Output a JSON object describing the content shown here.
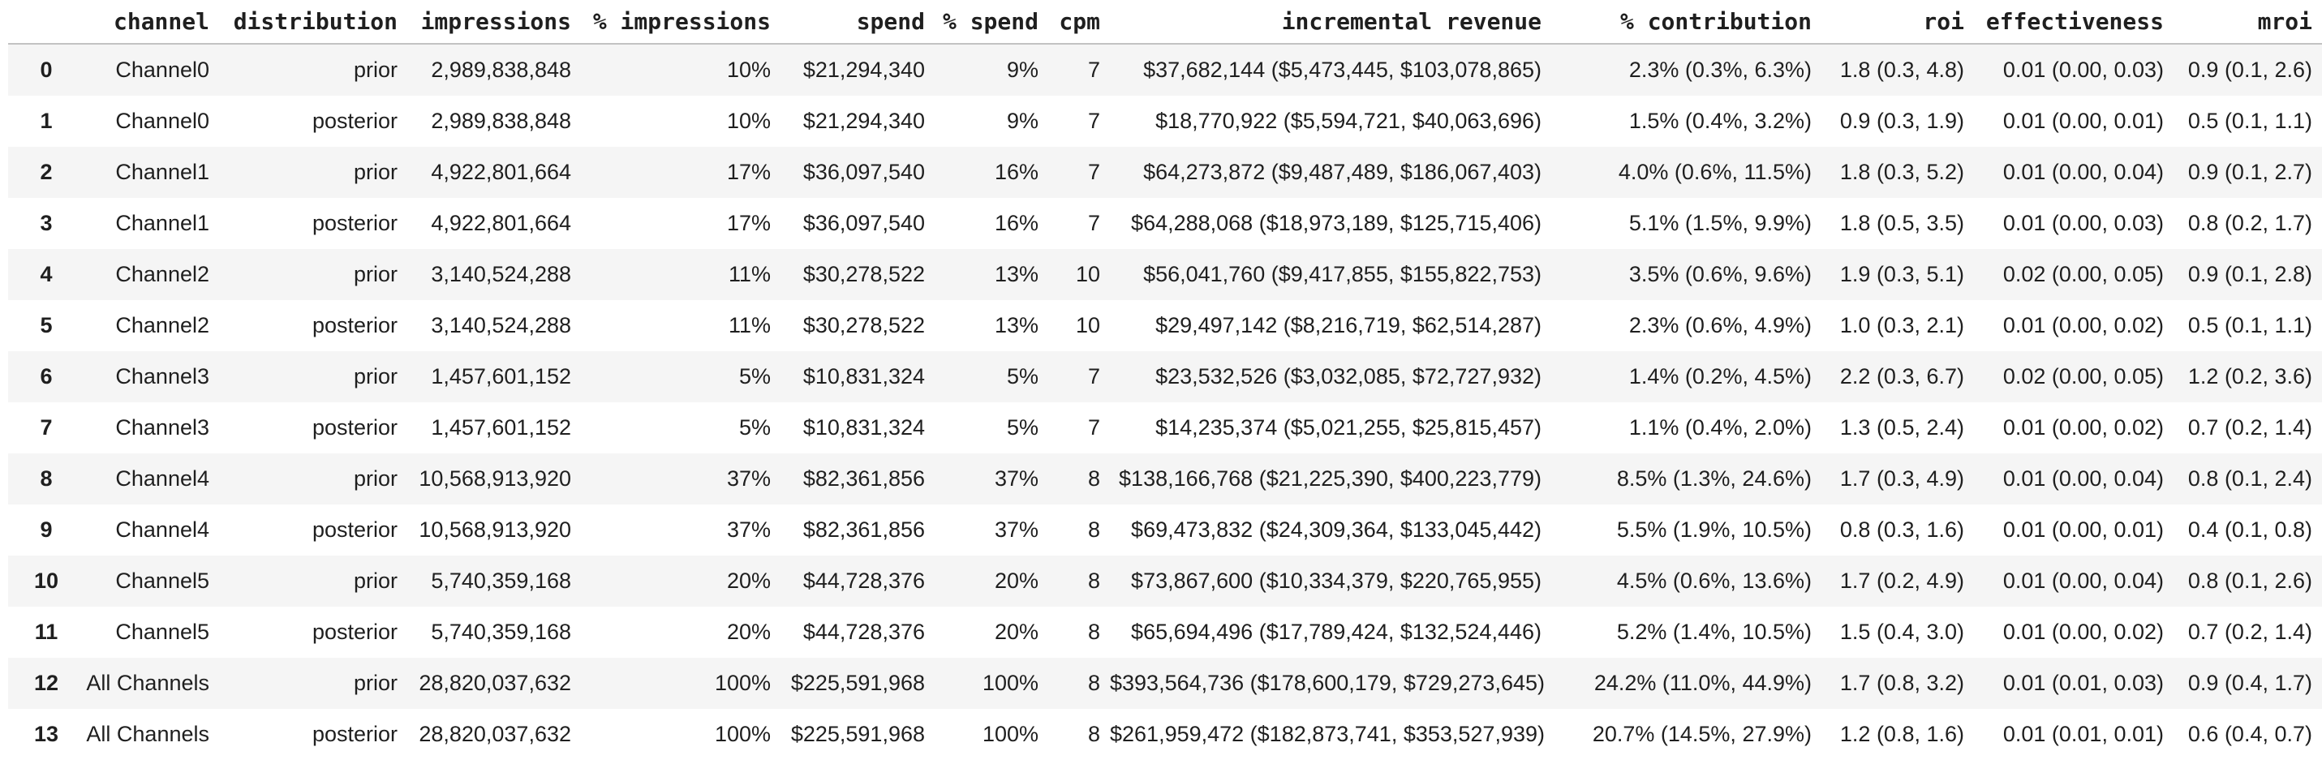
{
  "colors": {
    "background": "#ffffff",
    "row_stripe": "#f5f5f5",
    "text": "#1f1f1f",
    "header_border": "#c2c2c2"
  },
  "chart_data": {
    "type": "table",
    "description": "Media channel summary table with prior/posterior distributions per channel",
    "index_header": "",
    "columns": [
      "channel",
      "distribution",
      "impressions",
      "% impressions",
      "spend",
      "% spend",
      "cpm",
      "incremental revenue",
      "% contribution",
      "roi",
      "effectiveness",
      "mroi"
    ],
    "rows": [
      [
        "0",
        "Channel0",
        "prior",
        "2,989,838,848",
        "10%",
        "$21,294,340",
        "9%",
        "7",
        "$37,682,144 ($5,473,445, $103,078,865)",
        "2.3% (0.3%, 6.3%)",
        "1.8 (0.3, 4.8)",
        "0.01 (0.00, 0.03)",
        "0.9 (0.1, 2.6)"
      ],
      [
        "1",
        "Channel0",
        "posterior",
        "2,989,838,848",
        "10%",
        "$21,294,340",
        "9%",
        "7",
        "$18,770,922 ($5,594,721, $40,063,696)",
        "1.5% (0.4%, 3.2%)",
        "0.9 (0.3, 1.9)",
        "0.01 (0.00, 0.01)",
        "0.5 (0.1, 1.1)"
      ],
      [
        "2",
        "Channel1",
        "prior",
        "4,922,801,664",
        "17%",
        "$36,097,540",
        "16%",
        "7",
        "$64,273,872 ($9,487,489, $186,067,403)",
        "4.0% (0.6%, 11.5%)",
        "1.8 (0.3, 5.2)",
        "0.01 (0.00, 0.04)",
        "0.9 (0.1, 2.7)"
      ],
      [
        "3",
        "Channel1",
        "posterior",
        "4,922,801,664",
        "17%",
        "$36,097,540",
        "16%",
        "7",
        "$64,288,068 ($18,973,189, $125,715,406)",
        "5.1% (1.5%, 9.9%)",
        "1.8 (0.5, 3.5)",
        "0.01 (0.00, 0.03)",
        "0.8 (0.2, 1.7)"
      ],
      [
        "4",
        "Channel2",
        "prior",
        "3,140,524,288",
        "11%",
        "$30,278,522",
        "13%",
        "10",
        "$56,041,760 ($9,417,855, $155,822,753)",
        "3.5% (0.6%, 9.6%)",
        "1.9 (0.3, 5.1)",
        "0.02 (0.00, 0.05)",
        "0.9 (0.1, 2.8)"
      ],
      [
        "5",
        "Channel2",
        "posterior",
        "3,140,524,288",
        "11%",
        "$30,278,522",
        "13%",
        "10",
        "$29,497,142 ($8,216,719, $62,514,287)",
        "2.3% (0.6%, 4.9%)",
        "1.0 (0.3, 2.1)",
        "0.01 (0.00, 0.02)",
        "0.5 (0.1, 1.1)"
      ],
      [
        "6",
        "Channel3",
        "prior",
        "1,457,601,152",
        "5%",
        "$10,831,324",
        "5%",
        "7",
        "$23,532,526 ($3,032,085, $72,727,932)",
        "1.4% (0.2%, 4.5%)",
        "2.2 (0.3, 6.7)",
        "0.02 (0.00, 0.05)",
        "1.2 (0.2, 3.6)"
      ],
      [
        "7",
        "Channel3",
        "posterior",
        "1,457,601,152",
        "5%",
        "$10,831,324",
        "5%",
        "7",
        "$14,235,374 ($5,021,255, $25,815,457)",
        "1.1% (0.4%, 2.0%)",
        "1.3 (0.5, 2.4)",
        "0.01 (0.00, 0.02)",
        "0.7 (0.2, 1.4)"
      ],
      [
        "8",
        "Channel4",
        "prior",
        "10,568,913,920",
        "37%",
        "$82,361,856",
        "37%",
        "8",
        "$138,166,768 ($21,225,390, $400,223,779)",
        "8.5% (1.3%, 24.6%)",
        "1.7 (0.3, 4.9)",
        "0.01 (0.00, 0.04)",
        "0.8 (0.1, 2.4)"
      ],
      [
        "9",
        "Channel4",
        "posterior",
        "10,568,913,920",
        "37%",
        "$82,361,856",
        "37%",
        "8",
        "$69,473,832 ($24,309,364, $133,045,442)",
        "5.5% (1.9%, 10.5%)",
        "0.8 (0.3, 1.6)",
        "0.01 (0.00, 0.01)",
        "0.4 (0.1, 0.8)"
      ],
      [
        "10",
        "Channel5",
        "prior",
        "5,740,359,168",
        "20%",
        "$44,728,376",
        "20%",
        "8",
        "$73,867,600 ($10,334,379, $220,765,955)",
        "4.5% (0.6%, 13.6%)",
        "1.7 (0.2, 4.9)",
        "0.01 (0.00, 0.04)",
        "0.8 (0.1, 2.6)"
      ],
      [
        "11",
        "Channel5",
        "posterior",
        "5,740,359,168",
        "20%",
        "$44,728,376",
        "20%",
        "8",
        "$65,694,496 ($17,789,424, $132,524,446)",
        "5.2% (1.4%, 10.5%)",
        "1.5 (0.4, 3.0)",
        "0.01 (0.00, 0.02)",
        "0.7 (0.2, 1.4)"
      ],
      [
        "12",
        "All Channels",
        "prior",
        "28,820,037,632",
        "100%",
        "$225,591,968",
        "100%",
        "8",
        "$393,564,736 ($178,600,179, $729,273,645)",
        "24.2% (11.0%, 44.9%)",
        "1.7 (0.8, 3.2)",
        "0.01 (0.01, 0.03)",
        "0.9 (0.4, 1.7)"
      ],
      [
        "13",
        "All Channels",
        "posterior",
        "28,820,037,632",
        "100%",
        "$225,591,968",
        "100%",
        "8",
        "$261,959,472 ($182,873,741, $353,527,939)",
        "20.7% (14.5%, 27.9%)",
        "1.2 (0.8, 1.6)",
        "0.01 (0.01, 0.01)",
        "0.6 (0.4, 0.7)"
      ]
    ],
    "layout": {
      "column_alignment": "right",
      "index_alignment": "center",
      "striped_rows": "even data rows shaded",
      "header_font": "bold monospace",
      "grid": "header bottom border only"
    }
  }
}
